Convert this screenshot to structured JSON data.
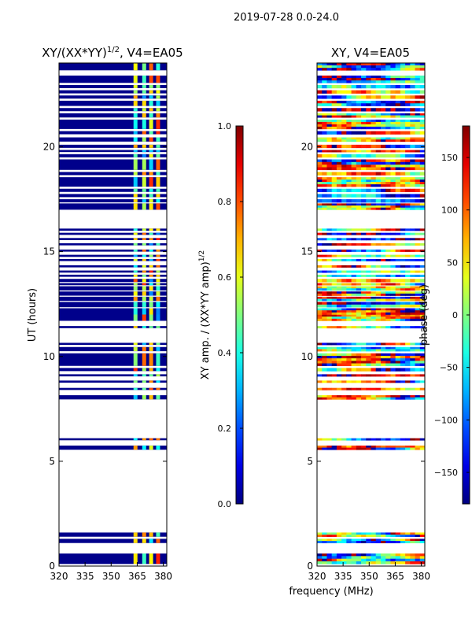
{
  "suptitle": "2019-07-28 0.0-24.0",
  "colors": {
    "band": "#00008b",
    "frame": "#000000",
    "gap": "#ffffff"
  },
  "colormap": "jet",
  "chart_data": [
    {
      "type": "heatmap",
      "title_prefix": "XY/(XX*YY)",
      "title_exp": "1/2",
      "title_suffix": ", V4=EA05",
      "xlabel": "",
      "ylabel": "UT (hours)",
      "xlim": [
        320,
        382
      ],
      "ylim": [
        0,
        24
      ],
      "xticks": [
        "320",
        "335",
        "350",
        "365",
        "380"
      ],
      "yticks": [
        "0",
        "5",
        "10",
        "15",
        "20"
      ],
      "rfi_channels_mhz": [
        364,
        369,
        373,
        377
      ],
      "colorbar": {
        "label": "XY amp. / (XX*YY amp)",
        "label_exp": "1/2",
        "range": [
          0.0,
          1.0
        ],
        "ticks": [
          "0.0",
          "0.2",
          "0.4",
          "0.6",
          "0.8",
          "1.0"
        ]
      }
    },
    {
      "type": "heatmap",
      "title": "XY, V4=EA05",
      "xlabel": "frequency (MHz)",
      "ylabel": "",
      "xlim": [
        320,
        382
      ],
      "ylim": [
        0,
        24
      ],
      "xticks": [
        "320",
        "335",
        "350",
        "365",
        "380"
      ],
      "yticks": [
        "0",
        "5",
        "10",
        "15",
        "20"
      ],
      "colorbar": {
        "label": "phase (deg)",
        "range": [
          -180,
          180
        ],
        "ticks": [
          "−150",
          "−100",
          "−50",
          "0",
          "50",
          "100",
          "150"
        ]
      }
    }
  ],
  "data_segments_ut_hours": [
    [
      0.1,
      0.6
    ],
    [
      1.1,
      1.3
    ],
    [
      1.4,
      1.6
    ],
    [
      5.55,
      5.75
    ],
    [
      6.0,
      6.1
    ],
    [
      7.95,
      8.15
    ],
    [
      8.4,
      8.5
    ],
    [
      8.75,
      8.85
    ],
    [
      9.05,
      9.15
    ],
    [
      9.3,
      9.45
    ],
    [
      9.55,
      10.15
    ],
    [
      10.25,
      10.45
    ],
    [
      10.55,
      10.65
    ],
    [
      11.35,
      11.45
    ],
    [
      11.7,
      12.0
    ],
    [
      12.0,
      12.3
    ],
    [
      12.35,
      12.6
    ],
    [
      12.65,
      12.85
    ],
    [
      12.9,
      13.1
    ],
    [
      13.15,
      13.35
    ],
    [
      13.4,
      13.5
    ],
    [
      13.55,
      13.7
    ],
    [
      13.8,
      13.9
    ],
    [
      14.0,
      14.1
    ],
    [
      14.25,
      14.35
    ],
    [
      14.55,
      14.65
    ],
    [
      14.75,
      14.85
    ],
    [
      15.0,
      15.1
    ],
    [
      15.3,
      15.4
    ],
    [
      15.55,
      15.65
    ],
    [
      15.8,
      15.9
    ],
    [
      16.0,
      16.1
    ],
    [
      17.0,
      17.3
    ],
    [
      17.35,
      17.5
    ],
    [
      17.6,
      17.75
    ],
    [
      17.85,
      18.0
    ],
    [
      18.1,
      18.55
    ],
    [
      18.65,
      18.8
    ],
    [
      18.9,
      19.4
    ],
    [
      19.5,
      19.65
    ],
    [
      19.75,
      19.85
    ],
    [
      19.95,
      20.1
    ],
    [
      20.25,
      20.45
    ],
    [
      20.6,
      20.75
    ],
    [
      20.85,
      21.3
    ],
    [
      21.4,
      21.6
    ],
    [
      21.7,
      21.85
    ],
    [
      21.95,
      22.2
    ],
    [
      22.3,
      22.45
    ],
    [
      22.55,
      22.7
    ],
    [
      22.8,
      22.95
    ],
    [
      23.05,
      23.4
    ],
    [
      23.65,
      24.0
    ]
  ]
}
